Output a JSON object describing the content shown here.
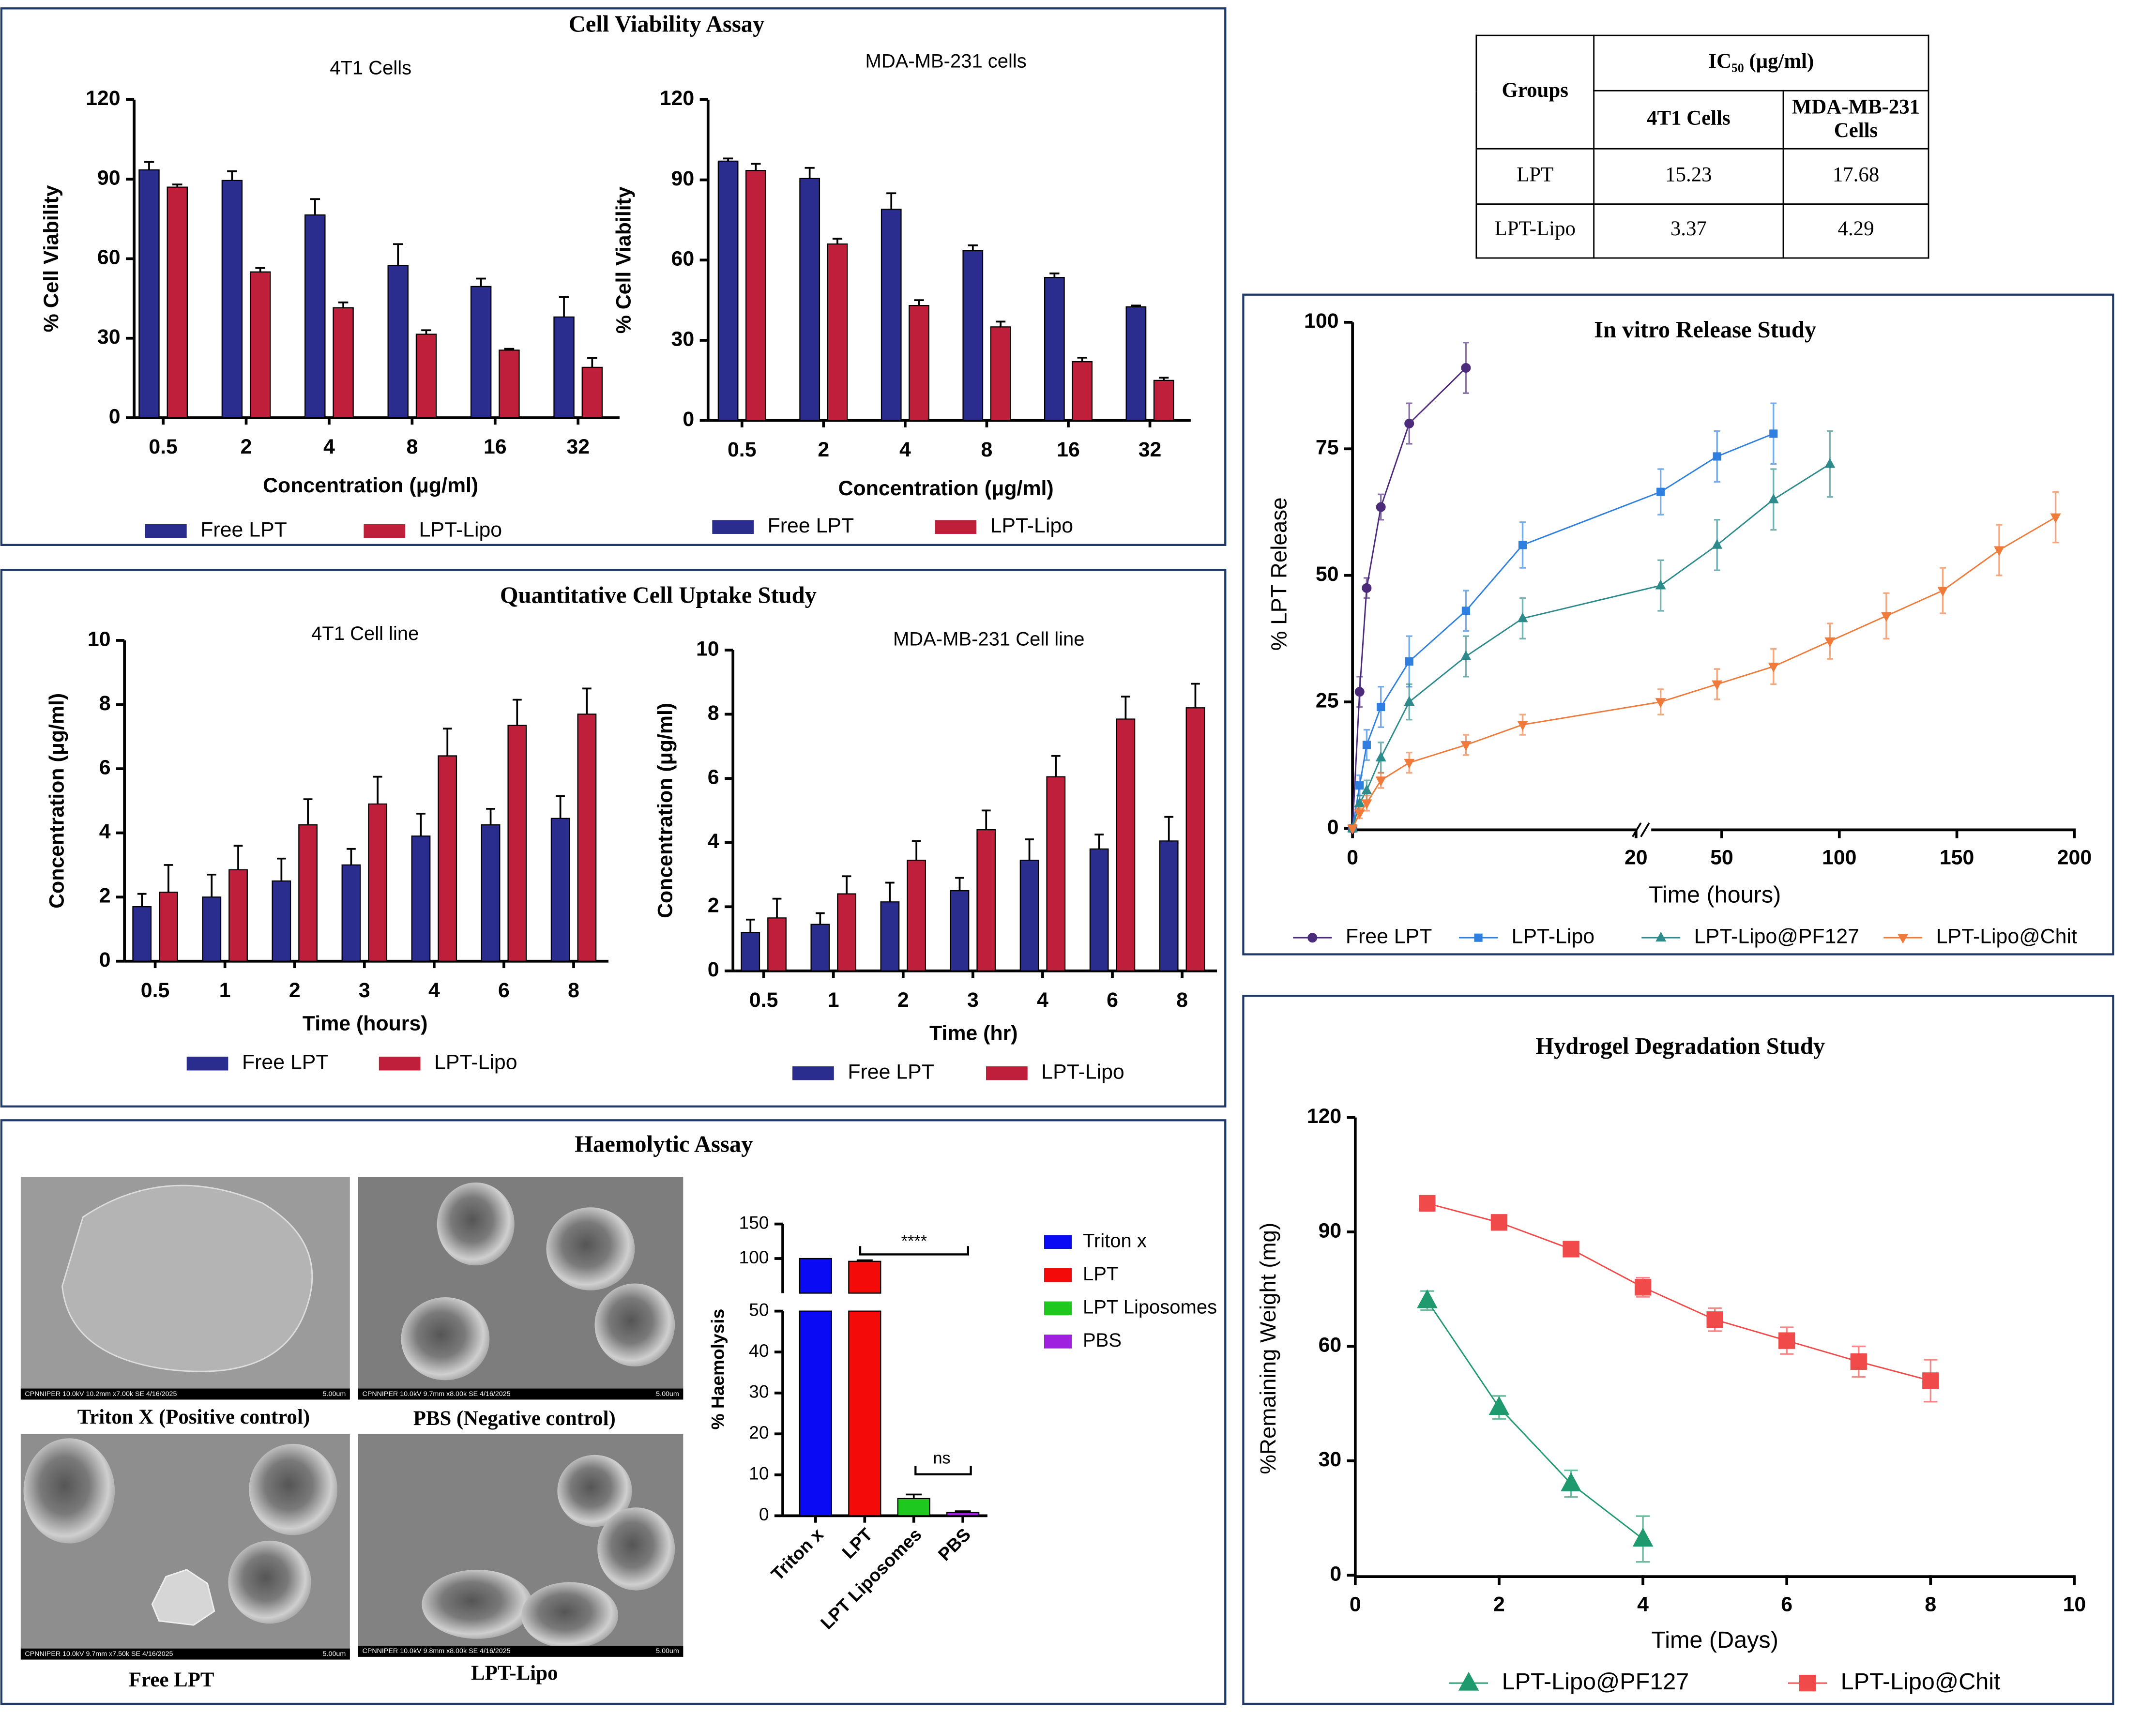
{
  "panels": [
    {
      "title": "Cell Viability Assay"
    },
    {
      "title": "Quantitative Cell Uptake Study"
    },
    {
      "title": "Haemolytic Assay"
    }
  ],
  "table": {
    "header": [
      "Groups",
      "IC₅₀ (μg/ml)"
    ],
    "subheader": [
      "4T1 Cells",
      "MDA-MB-231 Cells"
    ],
    "rows": [
      [
        "LPT",
        "15.23",
        "17.68"
      ],
      [
        "LPT-Lipo",
        "3.37",
        "4.29"
      ]
    ]
  },
  "images": [
    {
      "caption": "Triton X (Positive control)",
      "info": "CPNNIPER 10.0kV 10.2mm x7.00k SE 4/16/2025",
      "scale": "5.00um"
    },
    {
      "caption": "PBS (Negative control)",
      "info": "CPNNIPER 10.0kV 9.7mm x8.00k SE 4/16/2025",
      "scale": "5.00um"
    },
    {
      "caption": "Free LPT",
      "info": "CPNNIPER 10.0kV 9.7mm x7.50k SE 4/16/2025",
      "scale": "5.00um"
    },
    {
      "caption": "LPT-Lipo",
      "info": "CPNNIPER 10.0kV 9.8mm x8.00k SE 4/16/2025",
      "scale": "5.00um"
    }
  ],
  "chart_data": [
    {
      "type": "bar",
      "title": "4T1 Cells",
      "xlabel": "Concentration (μg/ml)",
      "ylabel": "% Cell Viability",
      "categories": [
        "0.5",
        "2",
        "4",
        "8",
        "16",
        "32"
      ],
      "series": [
        {
          "name": "Free LPT",
          "color": "#2b2d8e",
          "values": [
            93.5,
            89.5,
            76.5,
            57.5,
            49.5,
            38
          ],
          "errors": [
            3,
            3.5,
            6,
            8,
            3,
            7.5
          ]
        },
        {
          "name": "LPT-Lipo",
          "color": "#c01f3c",
          "values": [
            87,
            55,
            41.5,
            31.5,
            25.5,
            19
          ],
          "errors": [
            1,
            1.5,
            2,
            1.5,
            0.5,
            3.5
          ]
        }
      ],
      "ylim": [
        0,
        120
      ],
      "yticks": [
        0,
        30,
        60,
        90,
        120
      ]
    },
    {
      "type": "bar",
      "title": "MDA-MB-231 cells",
      "xlabel": "Concentration (μg/ml)",
      "ylabel": "% Cell Viability",
      "categories": [
        "0.5",
        "2",
        "4",
        "8",
        "16",
        "32"
      ],
      "series": [
        {
          "name": "Free LPT",
          "color": "#2b2d8e",
          "values": [
            97,
            90.5,
            79,
            63.5,
            53.5,
            42.5
          ],
          "errors": [
            1,
            4,
            6,
            2,
            1.5,
            0.5
          ]
        },
        {
          "name": "LPT-Lipo",
          "color": "#c01f3c",
          "values": [
            93.5,
            66,
            43,
            35,
            22,
            15
          ],
          "errors": [
            2.5,
            2,
            2,
            2,
            1.5,
            1
          ]
        }
      ],
      "ylim": [
        0,
        120
      ],
      "yticks": [
        0,
        30,
        60,
        90,
        120
      ]
    },
    {
      "type": "bar",
      "title": "4T1 Cell line",
      "xlabel": "Time (hours)",
      "ylabel": "Concentration (μg/ml)",
      "categories": [
        "0.5",
        "1",
        "2",
        "3",
        "4",
        "6",
        "8"
      ],
      "series": [
        {
          "name": "Free LPT",
          "color": "#2b2d8e",
          "values": [
            1.7,
            2.0,
            2.5,
            3.0,
            3.9,
            4.25,
            4.45
          ],
          "errors": [
            0.4,
            0.7,
            0.7,
            0.5,
            0.7,
            0.5,
            0.7
          ]
        },
        {
          "name": "LPT-Lipo",
          "color": "#c01f3c",
          "values": [
            2.15,
            2.85,
            4.25,
            4.9,
            6.4,
            7.35,
            7.7
          ],
          "errors": [
            0.85,
            0.75,
            0.8,
            0.85,
            0.85,
            0.8,
            0.8
          ]
        }
      ],
      "ylim": [
        0,
        10
      ],
      "yticks": [
        0,
        2,
        4,
        6,
        8,
        10
      ]
    },
    {
      "type": "bar",
      "title": "MDA-MB-231 Cell line",
      "xlabel": "Time (hr)",
      "ylabel": "Concentration (μg/ml)",
      "categories": [
        "0.5",
        "1",
        "2",
        "3",
        "4",
        "6",
        "8"
      ],
      "series": [
        {
          "name": "Free LPT",
          "color": "#2b2d8e",
          "values": [
            1.2,
            1.45,
            2.15,
            2.5,
            3.45,
            3.8,
            4.05
          ],
          "errors": [
            0.4,
            0.35,
            0.6,
            0.4,
            0.65,
            0.45,
            0.75
          ]
        },
        {
          "name": "LPT-Lipo",
          "color": "#c01f3c",
          "values": [
            1.65,
            2.4,
            3.45,
            4.4,
            6.05,
            7.85,
            8.2
          ],
          "errors": [
            0.6,
            0.55,
            0.6,
            0.6,
            0.65,
            0.7,
            0.75
          ]
        }
      ],
      "ylim": [
        0,
        10
      ],
      "yticks": [
        0,
        2,
        4,
        6,
        8,
        10
      ]
    },
    {
      "type": "bar",
      "ylabel": "% Haemolysis",
      "categories": [
        "Triton x",
        "LPT",
        "LPT Liposomes",
        "PBS"
      ],
      "values": [
        100,
        96,
        4.2,
        0.8
      ],
      "errors": [
        null,
        1.5,
        1,
        0.3
      ],
      "colors": [
        "#0a0af5",
        "#f50a0a",
        "#1ec81e",
        "#a020e0"
      ],
      "axis_segments": [
        {
          "ylim": [
            0,
            50
          ],
          "yticks": [
            0,
            10,
            20,
            30,
            40,
            50
          ]
        },
        {
          "ylim": [
            50,
            150
          ],
          "yticks": [
            100,
            150
          ]
        }
      ],
      "annotations": [
        {
          "text": "****"
        },
        {
          "text": "ns"
        }
      ]
    },
    {
      "type": "line",
      "title": "In vitro Release Study",
      "xlabel": "Time (hours)",
      "ylabel": "% LPT Release",
      "series": [
        {
          "name": "Free LPT",
          "color": "#4b2b7a",
          "marker": "circle",
          "x": [
            0,
            0.5,
            1,
            2,
            4,
            8
          ],
          "values": [
            0,
            27,
            47.5,
            63.5,
            80,
            91
          ],
          "errors": [
            null,
            3,
            2,
            2.5,
            4,
            5
          ]
        },
        {
          "name": "LPT-Lipo",
          "color": "#2f7fe0",
          "marker": "square",
          "x": [
            0,
            0.5,
            1,
            2,
            4,
            8,
            12,
            24,
            48,
            72
          ],
          "values": [
            0,
            8.5,
            16.5,
            24,
            33,
            43,
            56,
            66.5,
            73.5,
            78
          ],
          "errors": [
            null,
            2,
            3,
            4,
            5,
            4,
            4.5,
            4.5,
            5,
            6
          ]
        },
        {
          "name": "LPT-Lipo@PF127",
          "color": "#2e8b8b",
          "marker": "triangle",
          "x": [
            0,
            0.5,
            1,
            2,
            4,
            8,
            12,
            24,
            48,
            72,
            96
          ],
          "values": [
            0,
            5,
            7.5,
            14,
            25,
            34,
            41.5,
            48,
            56,
            65,
            72
          ],
          "errors": [
            null,
            1.5,
            2,
            3,
            3.5,
            4,
            4,
            5,
            5,
            6,
            6.5
          ]
        },
        {
          "name": "LPT-Lipo@Chit",
          "color": "#f07a3a",
          "marker": "triangle-down",
          "x": [
            0,
            0.5,
            1,
            2,
            4,
            8,
            12,
            24,
            48,
            72,
            96,
            120,
            144,
            168,
            192
          ],
          "values": [
            0,
            3,
            5,
            9.5,
            13,
            16.5,
            20.5,
            25,
            28.5,
            32,
            37,
            42,
            47,
            55,
            61.5
          ],
          "errors": [
            null,
            1,
            1.5,
            1.5,
            2,
            2,
            2,
            2.5,
            3,
            3.5,
            3.5,
            4.5,
            4.5,
            5,
            5
          ]
        }
      ],
      "x_segments": [
        {
          "xlim": [
            0,
            20
          ],
          "xticks": [
            0,
            20
          ]
        },
        {
          "xlim": [
            20,
            200
          ],
          "xticks": [
            50,
            100,
            150,
            200
          ]
        }
      ],
      "ylim": [
        0,
        100
      ],
      "yticks": [
        0,
        25,
        50,
        75,
        100
      ]
    },
    {
      "type": "line",
      "title": "Hydrogel Degradation Study",
      "xlabel": "Time (Days)",
      "ylabel": "%Remaining Weight (mg)",
      "series": [
        {
          "name": "LPT-Lipo@PF127",
          "color": "#1e9a6e",
          "marker": "triangle",
          "x": [
            1,
            2,
            3,
            4
          ],
          "values": [
            72,
            44,
            24,
            9.5
          ],
          "errors": [
            2.5,
            3,
            3.5,
            6
          ]
        },
        {
          "name": "LPT-Lipo@Chit",
          "color": "#f04a4a",
          "marker": "square",
          "x": [
            1,
            2,
            3,
            4,
            5,
            6,
            7,
            8
          ],
          "values": [
            97.5,
            92.5,
            85.5,
            75.5,
            67,
            61.5,
            56,
            51
          ],
          "errors": [
            1,
            1,
            1,
            2.5,
            3,
            3.5,
            4,
            5.5
          ]
        }
      ],
      "xlim": [
        0,
        10
      ],
      "xticks": [
        0,
        2,
        4,
        6,
        8,
        10
      ],
      "ylim": [
        0,
        120
      ],
      "yticks": [
        0,
        30,
        60,
        90,
        120
      ]
    }
  ]
}
